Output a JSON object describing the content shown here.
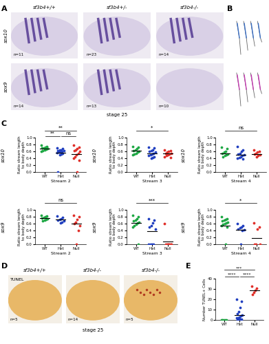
{
  "panel_labels": [
    "A",
    "B",
    "C",
    "D",
    "E"
  ],
  "panel_A": {
    "genotypes": [
      "sf3b4+/+",
      "sf3b4+/-",
      "sf3b4-/-"
    ],
    "rows": [
      {
        "label": "sox10",
        "n": [
          "n=11",
          "n=23",
          "n=14"
        ]
      },
      {
        "label": "sox9",
        "n": [
          "n=14",
          "n=13",
          "n=10"
        ]
      }
    ],
    "stage": "stage 25"
  },
  "panel_D": {
    "genotypes": [
      "sf3b4+/+",
      "sf3b4-/-",
      "sf3b4-/-"
    ],
    "stain": "TUNEL",
    "n": [
      "n=5",
      "n=14",
      "n=5"
    ],
    "stage": "stage 25"
  },
  "chart_data": [
    {
      "type": "strip",
      "title": "sox10",
      "x_label": "Stream 2",
      "y_label": "Ratio stream length\nto body depth",
      "categories": [
        "WT",
        "Het",
        "Null"
      ],
      "colors": [
        "#1fa845",
        "#2140c0",
        "#e0302a"
      ],
      "values": [
        [
          0.78,
          0.75,
          0.72,
          0.7,
          0.7,
          0.68,
          0.66,
          0.65,
          0.62,
          0.6,
          0.72
        ],
        [
          0.7,
          0.68,
          0.65,
          0.64,
          0.62,
          0.62,
          0.6,
          0.6,
          0.58,
          0.56,
          0.55,
          0.52,
          0.5,
          0.0
        ],
        [
          0.78,
          0.72,
          0.68,
          0.65,
          0.62,
          0.6,
          0.55,
          0.5,
          0.45,
          0.4,
          0.35,
          0.0
        ]
      ],
      "means": [
        0.69,
        0.56,
        0.53
      ],
      "ylim": [
        0.0,
        1.0
      ],
      "yticks": [
        0.0,
        0.2,
        0.4,
        0.6,
        0.8,
        1.0
      ],
      "significance": [
        {
          "from": "WT",
          "to": "Null",
          "label": "**"
        },
        {
          "from": "WT",
          "to": "Het",
          "label": "**"
        },
        {
          "from": "Het",
          "to": "Null",
          "label": "ns"
        }
      ]
    },
    {
      "type": "strip",
      "title": "sox10",
      "x_label": "Stream 3",
      "y_label": "Ratio stream length\nto body depth",
      "categories": [
        "WT",
        "Het",
        "Null"
      ],
      "colors": [
        "#1fa845",
        "#2140c0",
        "#e0302a"
      ],
      "values": [
        [
          0.75,
          0.72,
          0.68,
          0.65,
          0.62,
          0.6,
          0.58,
          0.55,
          0.52,
          0.5
        ],
        [
          0.72,
          0.7,
          0.65,
          0.62,
          0.6,
          0.58,
          0.55,
          0.52,
          0.5,
          0.48,
          0.45,
          0.42,
          0.4
        ],
        [
          0.65,
          0.62,
          0.6,
          0.58,
          0.55,
          0.55,
          0.52,
          0.5,
          0.48,
          0.45,
          0.42
        ]
      ],
      "means": [
        0.62,
        0.55,
        0.54
      ],
      "ylim": [
        0.0,
        1.0
      ],
      "yticks": [
        0.0,
        0.2,
        0.4,
        0.6,
        0.8,
        1.0
      ],
      "significance": [
        {
          "from": "WT",
          "to": "Null",
          "label": "*"
        }
      ]
    },
    {
      "type": "strip",
      "title": "sox10",
      "x_label": "Stream 4",
      "y_label": "Ratio stream length\nto body depth",
      "categories": [
        "WT",
        "Het",
        "Null"
      ],
      "colors": [
        "#1fa845",
        "#2140c0",
        "#e0302a"
      ],
      "values": [
        [
          0.72,
          0.68,
          0.6,
          0.58,
          0.55,
          0.52,
          0.5,
          0.48,
          0.45
        ],
        [
          0.75,
          0.65,
          0.6,
          0.55,
          0.52,
          0.5,
          0.48,
          0.45,
          0.42,
          0.4,
          0.38
        ],
        [
          0.65,
          0.6,
          0.58,
          0.55,
          0.52,
          0.5,
          0.48,
          0.45
        ]
      ],
      "means": [
        0.55,
        0.5,
        0.52
      ],
      "ylim": [
        0.0,
        1.0
      ],
      "yticks": [
        0.0,
        0.2,
        0.4,
        0.6,
        0.8,
        1.0
      ],
      "significance": [
        {
          "from": "WT",
          "to": "Null",
          "label": "ns"
        }
      ]
    },
    {
      "type": "strip",
      "title": "sox9",
      "x_label": "Stream 2",
      "y_label": "Ratio stream length\nto body depth",
      "categories": [
        "WT",
        "Het",
        "Null"
      ],
      "colors": [
        "#1fa845",
        "#2140c0",
        "#e0302a"
      ],
      "values": [
        [
          0.85,
          0.82,
          0.8,
          0.78,
          0.76,
          0.75,
          0.72,
          0.7,
          0.68
        ],
        [
          0.82,
          0.78,
          0.75,
          0.72,
          0.7,
          0.68,
          0.65,
          0.62
        ],
        [
          0.85,
          0.8,
          0.72,
          0.65,
          0.6,
          0.55,
          0.4,
          0.0
        ]
      ],
      "means": [
        0.76,
        0.72,
        0.61
      ],
      "ylim": [
        0.0,
        1.0
      ],
      "yticks": [
        0.0,
        0.2,
        0.4,
        0.6,
        0.8,
        1.0
      ],
      "significance": [
        {
          "from": "WT",
          "to": "Null",
          "label": "ns"
        }
      ]
    },
    {
      "type": "strip",
      "title": "sox9",
      "x_label": "Stream 3",
      "y_label": "Ratio stream length\nto body depth",
      "categories": [
        "WT",
        "Het",
        "Null"
      ],
      "colors": [
        "#1fa845",
        "#2140c0",
        "#e0302a"
      ],
      "values": [
        [
          0.85,
          0.8,
          0.75,
          0.7,
          0.68,
          0.65,
          0.62,
          0.58,
          0.55,
          0.5,
          0.0
        ],
        [
          0.75,
          0.7,
          0.62,
          0.55,
          0.5,
          0.45,
          0.0,
          0.0,
          0.0,
          0.0
        ],
        [
          0.6,
          0.0,
          0.0,
          0.0,
          0.0,
          0.0,
          0.0,
          0.0
        ]
      ],
      "means": [
        0.63,
        0.39,
        0.08
      ],
      "ylim": [
        0.0,
        1.0
      ],
      "yticks": [
        0.0,
        0.2,
        0.4,
        0.6,
        0.8,
        1.0
      ],
      "significance": [
        {
          "from": "WT",
          "to": "Null",
          "label": "***"
        }
      ]
    },
    {
      "type": "strip",
      "title": "sox9",
      "x_label": "Stream 4",
      "y_label": "Ratio stream length\nto body depth",
      "categories": [
        "WT",
        "Het",
        "Null"
      ],
      "colors": [
        "#1fa845",
        "#2140c0",
        "#e0302a"
      ],
      "values": [
        [
          0.8,
          0.75,
          0.72,
          0.7,
          0.68,
          0.65,
          0.62,
          0.6,
          0.58,
          0.55,
          0.5,
          0.0
        ],
        [
          0.6,
          0.55,
          0.5,
          0.48,
          0.45,
          0.42,
          0.4,
          0.0
        ],
        [
          0.62,
          0.5,
          0.45,
          0.0,
          0.0,
          0.0
        ]
      ],
      "means": [
        0.55,
        0.43,
        0.18
      ],
      "ylim": [
        0.0,
        1.0
      ],
      "yticks": [
        0.0,
        0.2,
        0.4,
        0.6,
        0.8,
        1.0
      ],
      "significance": [
        {
          "from": "WT",
          "to": "Null",
          "label": "*"
        }
      ]
    },
    {
      "type": "strip",
      "title": null,
      "x_label": null,
      "y_label": "Number TUNEL+ Cells",
      "categories": [
        "WT",
        "Het",
        "Null"
      ],
      "colors": [
        "#1fa845",
        "#2140c0",
        "#e0302a"
      ],
      "values": [
        [
          0,
          0,
          0,
          0,
          0
        ],
        [
          20,
          18,
          12,
          8,
          6,
          5,
          4,
          3,
          2,
          2,
          1,
          1,
          0,
          0
        ],
        [
          33,
          31,
          29,
          27,
          25
        ]
      ],
      "means": [
        0,
        5,
        29
      ],
      "ylim": [
        0,
        40
      ],
      "yticks": [
        0,
        10,
        20,
        30,
        40
      ],
      "significance": [
        {
          "from": "WT",
          "to": "Null",
          "label": "***"
        },
        {
          "from": "WT",
          "to": "Het",
          "label": "****"
        },
        {
          "from": "Het",
          "to": "Null",
          "label": "****"
        }
      ]
    }
  ]
}
